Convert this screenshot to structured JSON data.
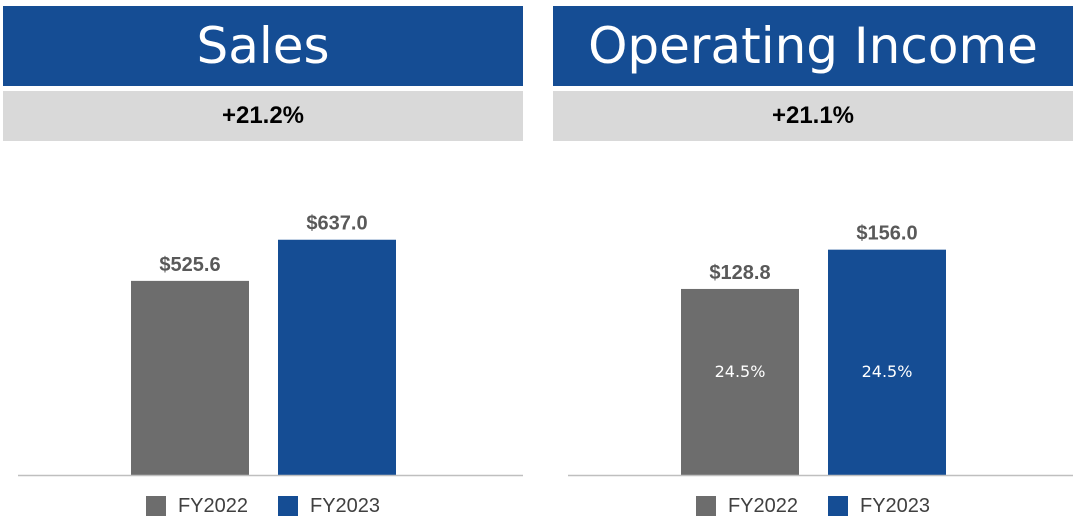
{
  "chart_data": [
    {
      "type": "bar",
      "title": "Sales",
      "subtitle": "+21.2%",
      "categories": [
        "FY2022",
        "FY2023"
      ],
      "values": [
        525.6,
        637.0
      ],
      "value_labels": [
        "$525.6",
        "$637.0"
      ],
      "inner_labels": [],
      "colors": [
        "#6d6d6d",
        "#154d94"
      ],
      "ylim": [
        0,
        880
      ],
      "grid": false,
      "legend": [
        "FY2022",
        "FY2023"
      ],
      "legend_position": "bottom"
    },
    {
      "type": "bar",
      "title": "Operating Income",
      "subtitle": "+21.1%",
      "categories": [
        "FY2022",
        "FY2023"
      ],
      "values": [
        128.8,
        156.0
      ],
      "value_labels": [
        "$128.8",
        "$156.0"
      ],
      "inner_labels": [
        "24.5%",
        "24.5%"
      ],
      "colors": [
        "#6d6d6d",
        "#154d94"
      ],
      "ylim": [
        0,
        225
      ],
      "grid": false,
      "legend": [
        "FY2022",
        "FY2023"
      ],
      "legend_position": "bottom"
    }
  ]
}
